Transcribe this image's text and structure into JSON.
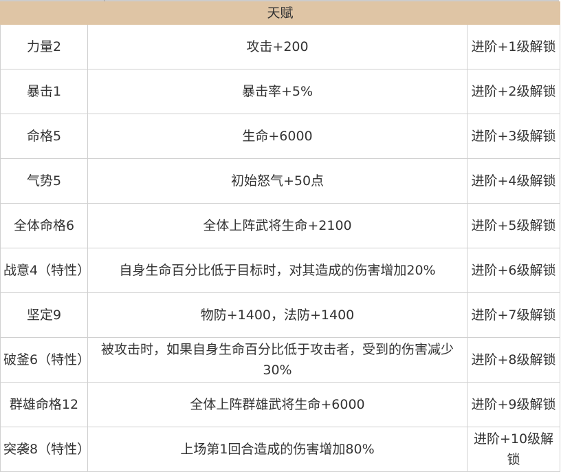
{
  "header": {
    "title": "天赋",
    "bg_color": "#dfc5a5"
  },
  "rows": [
    {
      "name": "力量2",
      "effect": "攻击+200",
      "unlock": "进阶+1级解锁"
    },
    {
      "name": "暴击1",
      "effect": "暴击率+5%",
      "unlock": "进阶+2级解锁"
    },
    {
      "name": "命格5",
      "effect": "生命+6000",
      "unlock": "进阶+3级解锁"
    },
    {
      "name": "气势5",
      "effect": "初始怒气+50点",
      "unlock": "进阶+4级解锁"
    },
    {
      "name": "全体命格6",
      "effect": "全体上阵武将生命+2100",
      "unlock": "进阶+5级解锁"
    },
    {
      "name": "战意4（特性）",
      "effect": "自身生命百分比低于目标时，对其造成的伤害增加20%",
      "unlock": "进阶+6级解锁"
    },
    {
      "name": "坚定9",
      "effect": "物防+1400，法防+1400",
      "unlock": "进阶+7级解锁"
    },
    {
      "name": "破釜6（特性）",
      "effect": "被攻击时，如果自身生命百分比低于攻击者，受到的伤害减少30%",
      "unlock": "进阶+8级解锁"
    },
    {
      "name": "群雄命格12",
      "effect": "全体上阵群雄武将生命+6000",
      "unlock": "进阶+9级解锁"
    },
    {
      "name": "突袭8（特性）",
      "effect": "上场第1回合造成的伤害增加80%",
      "unlock": "进阶+10级解锁"
    }
  ]
}
